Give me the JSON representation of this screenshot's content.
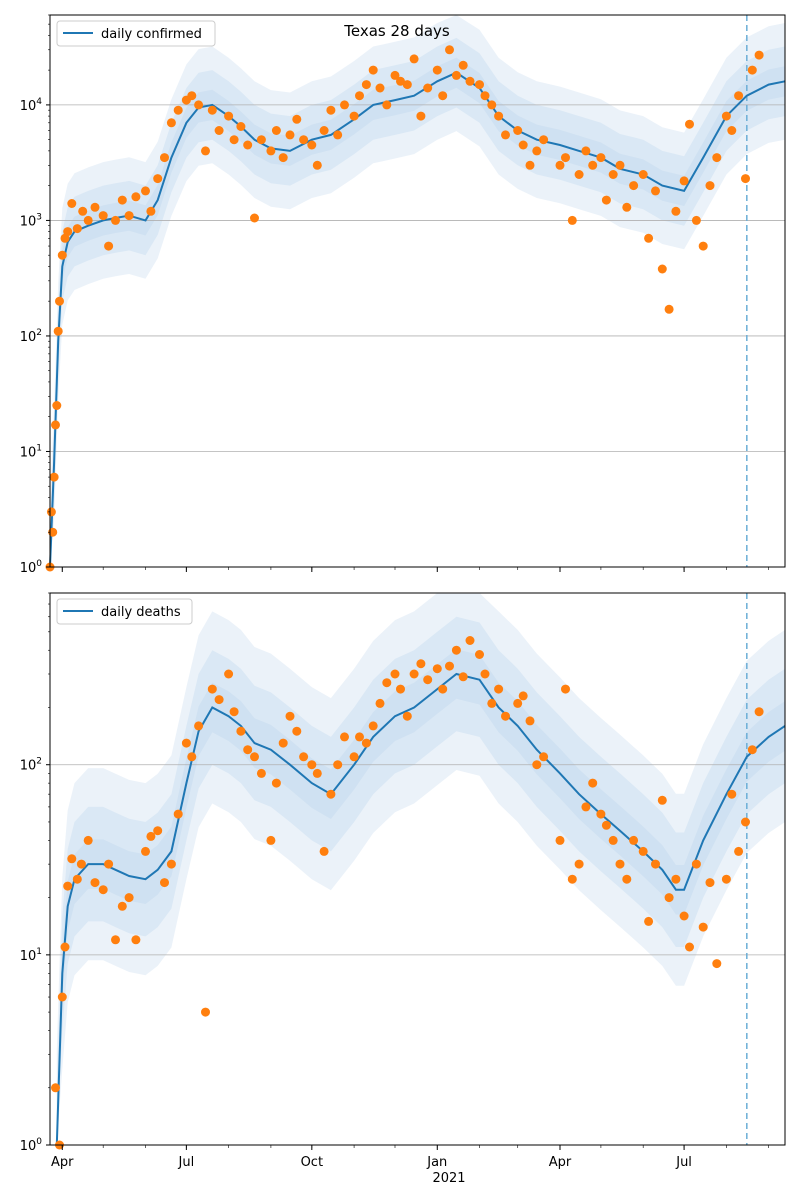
{
  "title": "Texas 28 days",
  "xaxis": {
    "ticks": [
      {
        "date": "2020-04-01",
        "label": "Apr"
      },
      {
        "date": "2020-07-01",
        "label": "Jul"
      },
      {
        "date": "2020-10-01",
        "label": "Oct"
      },
      {
        "date": "2021-01-01",
        "label": "Jan"
      },
      {
        "date": "2021-04-01",
        "label": "Apr"
      },
      {
        "date": "2021-07-01",
        "label": "Jul"
      }
    ],
    "year_label": "2021",
    "range": [
      "2020-03-23",
      "2021-09-13"
    ],
    "forecast_start": "2021-08-16"
  },
  "colors": {
    "line": "#1f77b4",
    "points": "#ff7f0e",
    "band": "#c6dbef",
    "grid": "#b0b0b0",
    "forecast_line": "#6baed6"
  },
  "chart_data": [
    {
      "type": "line",
      "legend": "daily confirmed",
      "legend_position": "top-left",
      "yscale": "log",
      "ylim": [
        1,
        60000
      ],
      "yticks": [
        1,
        10,
        100,
        1000,
        10000
      ],
      "ytick_labels": [
        "10^0",
        "10^1",
        "10^2",
        "10^3",
        "10^4"
      ],
      "grid": true,
      "series": [
        {
          "kind": "line",
          "x": [
            "2020-03-23",
            "2020-03-26",
            "2020-03-29",
            "2020-04-01",
            "2020-04-05",
            "2020-04-10",
            "2020-04-20",
            "2020-05-01",
            "2020-05-10",
            "2020-05-20",
            "2020-06-01",
            "2020-06-10",
            "2020-06-20",
            "2020-07-01",
            "2020-07-10",
            "2020-07-20",
            "2020-08-01",
            "2020-08-10",
            "2020-08-20",
            "2020-09-01",
            "2020-09-15",
            "2020-10-01",
            "2020-10-15",
            "2020-11-01",
            "2020-11-15",
            "2020-12-01",
            "2020-12-15",
            "2021-01-01",
            "2021-01-15",
            "2021-02-01",
            "2021-02-15",
            "2021-03-01",
            "2021-03-15",
            "2021-04-01",
            "2021-04-15",
            "2021-05-01",
            "2021-05-15",
            "2021-06-01",
            "2021-06-15",
            "2021-07-01",
            "2021-07-15",
            "2021-08-01",
            "2021-08-16",
            "2021-09-01",
            "2021-09-13"
          ],
          "y": [
            1,
            8,
            90,
            400,
            650,
            800,
            900,
            1000,
            1050,
            1100,
            1000,
            1500,
            3500,
            7000,
            9500,
            10000,
            8000,
            6500,
            5000,
            4200,
            4000,
            5000,
            5500,
            7500,
            10000,
            11000,
            12000,
            16000,
            19000,
            14000,
            8000,
            6000,
            5000,
            4500,
            4000,
            3500,
            2800,
            2500,
            2000,
            1800,
            3500,
            8000,
            12000,
            15000,
            16000
          ]
        },
        {
          "kind": "scatter",
          "x": [
            "2020-03-23",
            "2020-03-24",
            "2020-03-25",
            "2020-03-26",
            "2020-03-27",
            "2020-03-28",
            "2020-03-29",
            "2020-03-30",
            "2020-04-01",
            "2020-04-03",
            "2020-04-05",
            "2020-04-08",
            "2020-04-12",
            "2020-04-16",
            "2020-04-20",
            "2020-04-25",
            "2020-05-01",
            "2020-05-05",
            "2020-05-10",
            "2020-05-15",
            "2020-05-20",
            "2020-05-25",
            "2020-06-01",
            "2020-06-05",
            "2020-06-10",
            "2020-06-15",
            "2020-06-20",
            "2020-06-25",
            "2020-07-01",
            "2020-07-05",
            "2020-07-10",
            "2020-07-15",
            "2020-07-20",
            "2020-07-25",
            "2020-08-01",
            "2020-08-05",
            "2020-08-10",
            "2020-08-15",
            "2020-08-20",
            "2020-08-25",
            "2020-09-01",
            "2020-09-05",
            "2020-09-10",
            "2020-09-15",
            "2020-09-20",
            "2020-09-25",
            "2020-10-01",
            "2020-10-05",
            "2020-10-10",
            "2020-10-15",
            "2020-10-20",
            "2020-10-25",
            "2020-11-01",
            "2020-11-05",
            "2020-11-10",
            "2020-11-15",
            "2020-11-20",
            "2020-11-25",
            "2020-12-01",
            "2020-12-05",
            "2020-12-10",
            "2020-12-15",
            "2020-12-20",
            "2020-12-25",
            "2021-01-01",
            "2021-01-05",
            "2021-01-10",
            "2021-01-15",
            "2021-01-20",
            "2021-01-25",
            "2021-02-01",
            "2021-02-05",
            "2021-02-10",
            "2021-02-15",
            "2021-02-20",
            "2021-03-01",
            "2021-03-05",
            "2021-03-10",
            "2021-03-15",
            "2021-03-20",
            "2021-04-01",
            "2021-04-05",
            "2021-04-10",
            "2021-04-15",
            "2021-04-20",
            "2021-04-25",
            "2021-05-01",
            "2021-05-05",
            "2021-05-10",
            "2021-05-15",
            "2021-05-20",
            "2021-05-25",
            "2021-06-01",
            "2021-06-05",
            "2021-06-10",
            "2021-06-15",
            "2021-06-20",
            "2021-06-25",
            "2021-07-01",
            "2021-07-05",
            "2021-07-10",
            "2021-07-15",
            "2021-07-20",
            "2021-07-25",
            "2021-08-01",
            "2021-08-05",
            "2021-08-10",
            "2021-08-15",
            "2021-08-20",
            "2021-08-25"
          ],
          "y": [
            1,
            3,
            2,
            6,
            17,
            25,
            110,
            200,
            500,
            700,
            800,
            1400,
            850,
            1200,
            1000,
            1300,
            1100,
            600,
            1000,
            1500,
            1100,
            1600,
            1800,
            1200,
            2300,
            3500,
            7000,
            9000,
            11000,
            12000,
            10000,
            4000,
            9000,
            6000,
            8000,
            5000,
            6500,
            4500,
            1050,
            5000,
            4000,
            6000,
            3500,
            5500,
            7500,
            5000,
            4500,
            3000,
            6000,
            9000,
            5500,
            10000,
            8000,
            12000,
            15000,
            20000,
            14000,
            10000,
            18000,
            16000,
            15000,
            25000,
            8000,
            14000,
            20000,
            12000,
            30000,
            18000,
            22000,
            16000,
            15000,
            12000,
            10000,
            8000,
            5500,
            6000,
            4500,
            3000,
            4000,
            5000,
            3000,
            3500,
            1000,
            2500,
            4000,
            3000,
            3500,
            1500,
            2500,
            3000,
            1300,
            2000,
            2500,
            700,
            1800,
            380,
            170,
            1200,
            2200,
            6800,
            1000,
            600,
            2000,
            3500,
            8000,
            6000,
            12000,
            2300,
            20000,
            27000
          ]
        }
      ]
    },
    {
      "type": "line",
      "legend": "daily deaths",
      "legend_position": "top-left",
      "yscale": "log",
      "ylim": [
        1,
        800
      ],
      "yticks": [
        1,
        10,
        100
      ],
      "ytick_labels": [
        "10^0",
        "10^1",
        "10^2"
      ],
      "grid": true,
      "series": [
        {
          "kind": "line",
          "x": [
            "2020-03-28",
            "2020-04-01",
            "2020-04-05",
            "2020-04-10",
            "2020-04-20",
            "2020-05-01",
            "2020-05-10",
            "2020-05-20",
            "2020-06-01",
            "2020-06-10",
            "2020-06-20",
            "2020-07-01",
            "2020-07-10",
            "2020-07-20",
            "2020-08-01",
            "2020-08-10",
            "2020-08-20",
            "2020-09-01",
            "2020-09-15",
            "2020-10-01",
            "2020-10-15",
            "2020-11-01",
            "2020-11-15",
            "2020-12-01",
            "2020-12-15",
            "2021-01-01",
            "2021-01-15",
            "2021-02-01",
            "2021-02-15",
            "2021-03-01",
            "2021-03-15",
            "2021-04-01",
            "2021-04-15",
            "2021-05-01",
            "2021-05-15",
            "2021-06-01",
            "2021-06-15",
            "2021-06-25",
            "2021-07-01",
            "2021-07-15",
            "2021-08-01",
            "2021-08-16",
            "2021-09-01",
            "2021-09-13"
          ],
          "y": [
            1,
            8,
            18,
            25,
            30,
            30,
            28,
            26,
            25,
            28,
            35,
            80,
            150,
            200,
            180,
            160,
            130,
            120,
            100,
            80,
            70,
            100,
            140,
            180,
            200,
            250,
            300,
            280,
            200,
            160,
            120,
            90,
            70,
            55,
            45,
            35,
            28,
            22,
            22,
            40,
            70,
            110,
            140,
            160
          ]
        },
        {
          "kind": "scatter",
          "x": [
            "2020-03-27",
            "2020-03-30",
            "2020-04-01",
            "2020-04-03",
            "2020-04-05",
            "2020-04-08",
            "2020-04-12",
            "2020-04-15",
            "2020-04-20",
            "2020-04-25",
            "2020-05-01",
            "2020-05-05",
            "2020-05-10",
            "2020-05-15",
            "2020-05-20",
            "2020-05-25",
            "2020-06-01",
            "2020-06-05",
            "2020-06-10",
            "2020-06-15",
            "2020-06-20",
            "2020-06-25",
            "2020-07-01",
            "2020-07-05",
            "2020-07-10",
            "2020-07-15",
            "2020-07-20",
            "2020-07-25",
            "2020-08-01",
            "2020-08-05",
            "2020-08-10",
            "2020-08-15",
            "2020-08-20",
            "2020-08-25",
            "2020-09-01",
            "2020-09-05",
            "2020-09-10",
            "2020-09-15",
            "2020-09-20",
            "2020-09-25",
            "2020-10-01",
            "2020-10-05",
            "2020-10-10",
            "2020-10-15",
            "2020-10-20",
            "2020-10-25",
            "2020-11-01",
            "2020-11-05",
            "2020-11-10",
            "2020-11-15",
            "2020-11-20",
            "2020-11-25",
            "2020-12-01",
            "2020-12-05",
            "2020-12-10",
            "2020-12-15",
            "2020-12-20",
            "2020-12-25",
            "2021-01-01",
            "2021-01-05",
            "2021-01-10",
            "2021-01-15",
            "2021-01-20",
            "2021-01-25",
            "2021-02-01",
            "2021-02-05",
            "2021-02-10",
            "2021-02-15",
            "2021-02-20",
            "2021-03-01",
            "2021-03-05",
            "2021-03-10",
            "2021-03-15",
            "2021-03-20",
            "2021-04-01",
            "2021-04-05",
            "2021-04-10",
            "2021-04-15",
            "2021-04-20",
            "2021-04-25",
            "2021-05-01",
            "2021-05-05",
            "2021-05-10",
            "2021-05-15",
            "2021-05-20",
            "2021-05-25",
            "2021-06-01",
            "2021-06-05",
            "2021-06-10",
            "2021-06-15",
            "2021-06-20",
            "2021-06-25",
            "2021-07-01",
            "2021-07-05",
            "2021-07-10",
            "2021-07-15",
            "2021-07-20",
            "2021-07-25",
            "2021-08-01",
            "2021-08-05",
            "2021-08-10",
            "2021-08-15",
            "2021-08-20",
            "2021-08-25"
          ],
          "y": [
            2,
            1,
            6,
            11,
            23,
            32,
            25,
            30,
            40,
            24,
            22,
            30,
            12,
            18,
            20,
            12,
            35,
            42,
            45,
            24,
            30,
            55,
            130,
            110,
            160,
            5,
            250,
            220,
            300,
            190,
            150,
            120,
            110,
            90,
            40,
            80,
            130,
            180,
            150,
            110,
            100,
            90,
            35,
            70,
            100,
            140,
            110,
            140,
            130,
            160,
            210,
            270,
            300,
            250,
            180,
            300,
            340,
            280,
            320,
            250,
            330,
            400,
            290,
            450,
            380,
            300,
            210,
            250,
            180,
            210,
            230,
            170,
            100,
            110,
            40,
            250,
            25,
            30,
            60,
            80,
            55,
            48,
            40,
            30,
            25,
            40,
            35,
            15,
            30,
            65,
            20,
            25,
            16,
            11,
            30,
            14,
            24,
            9,
            25,
            70,
            35,
            50,
            120,
            190
          ]
        }
      ]
    }
  ]
}
